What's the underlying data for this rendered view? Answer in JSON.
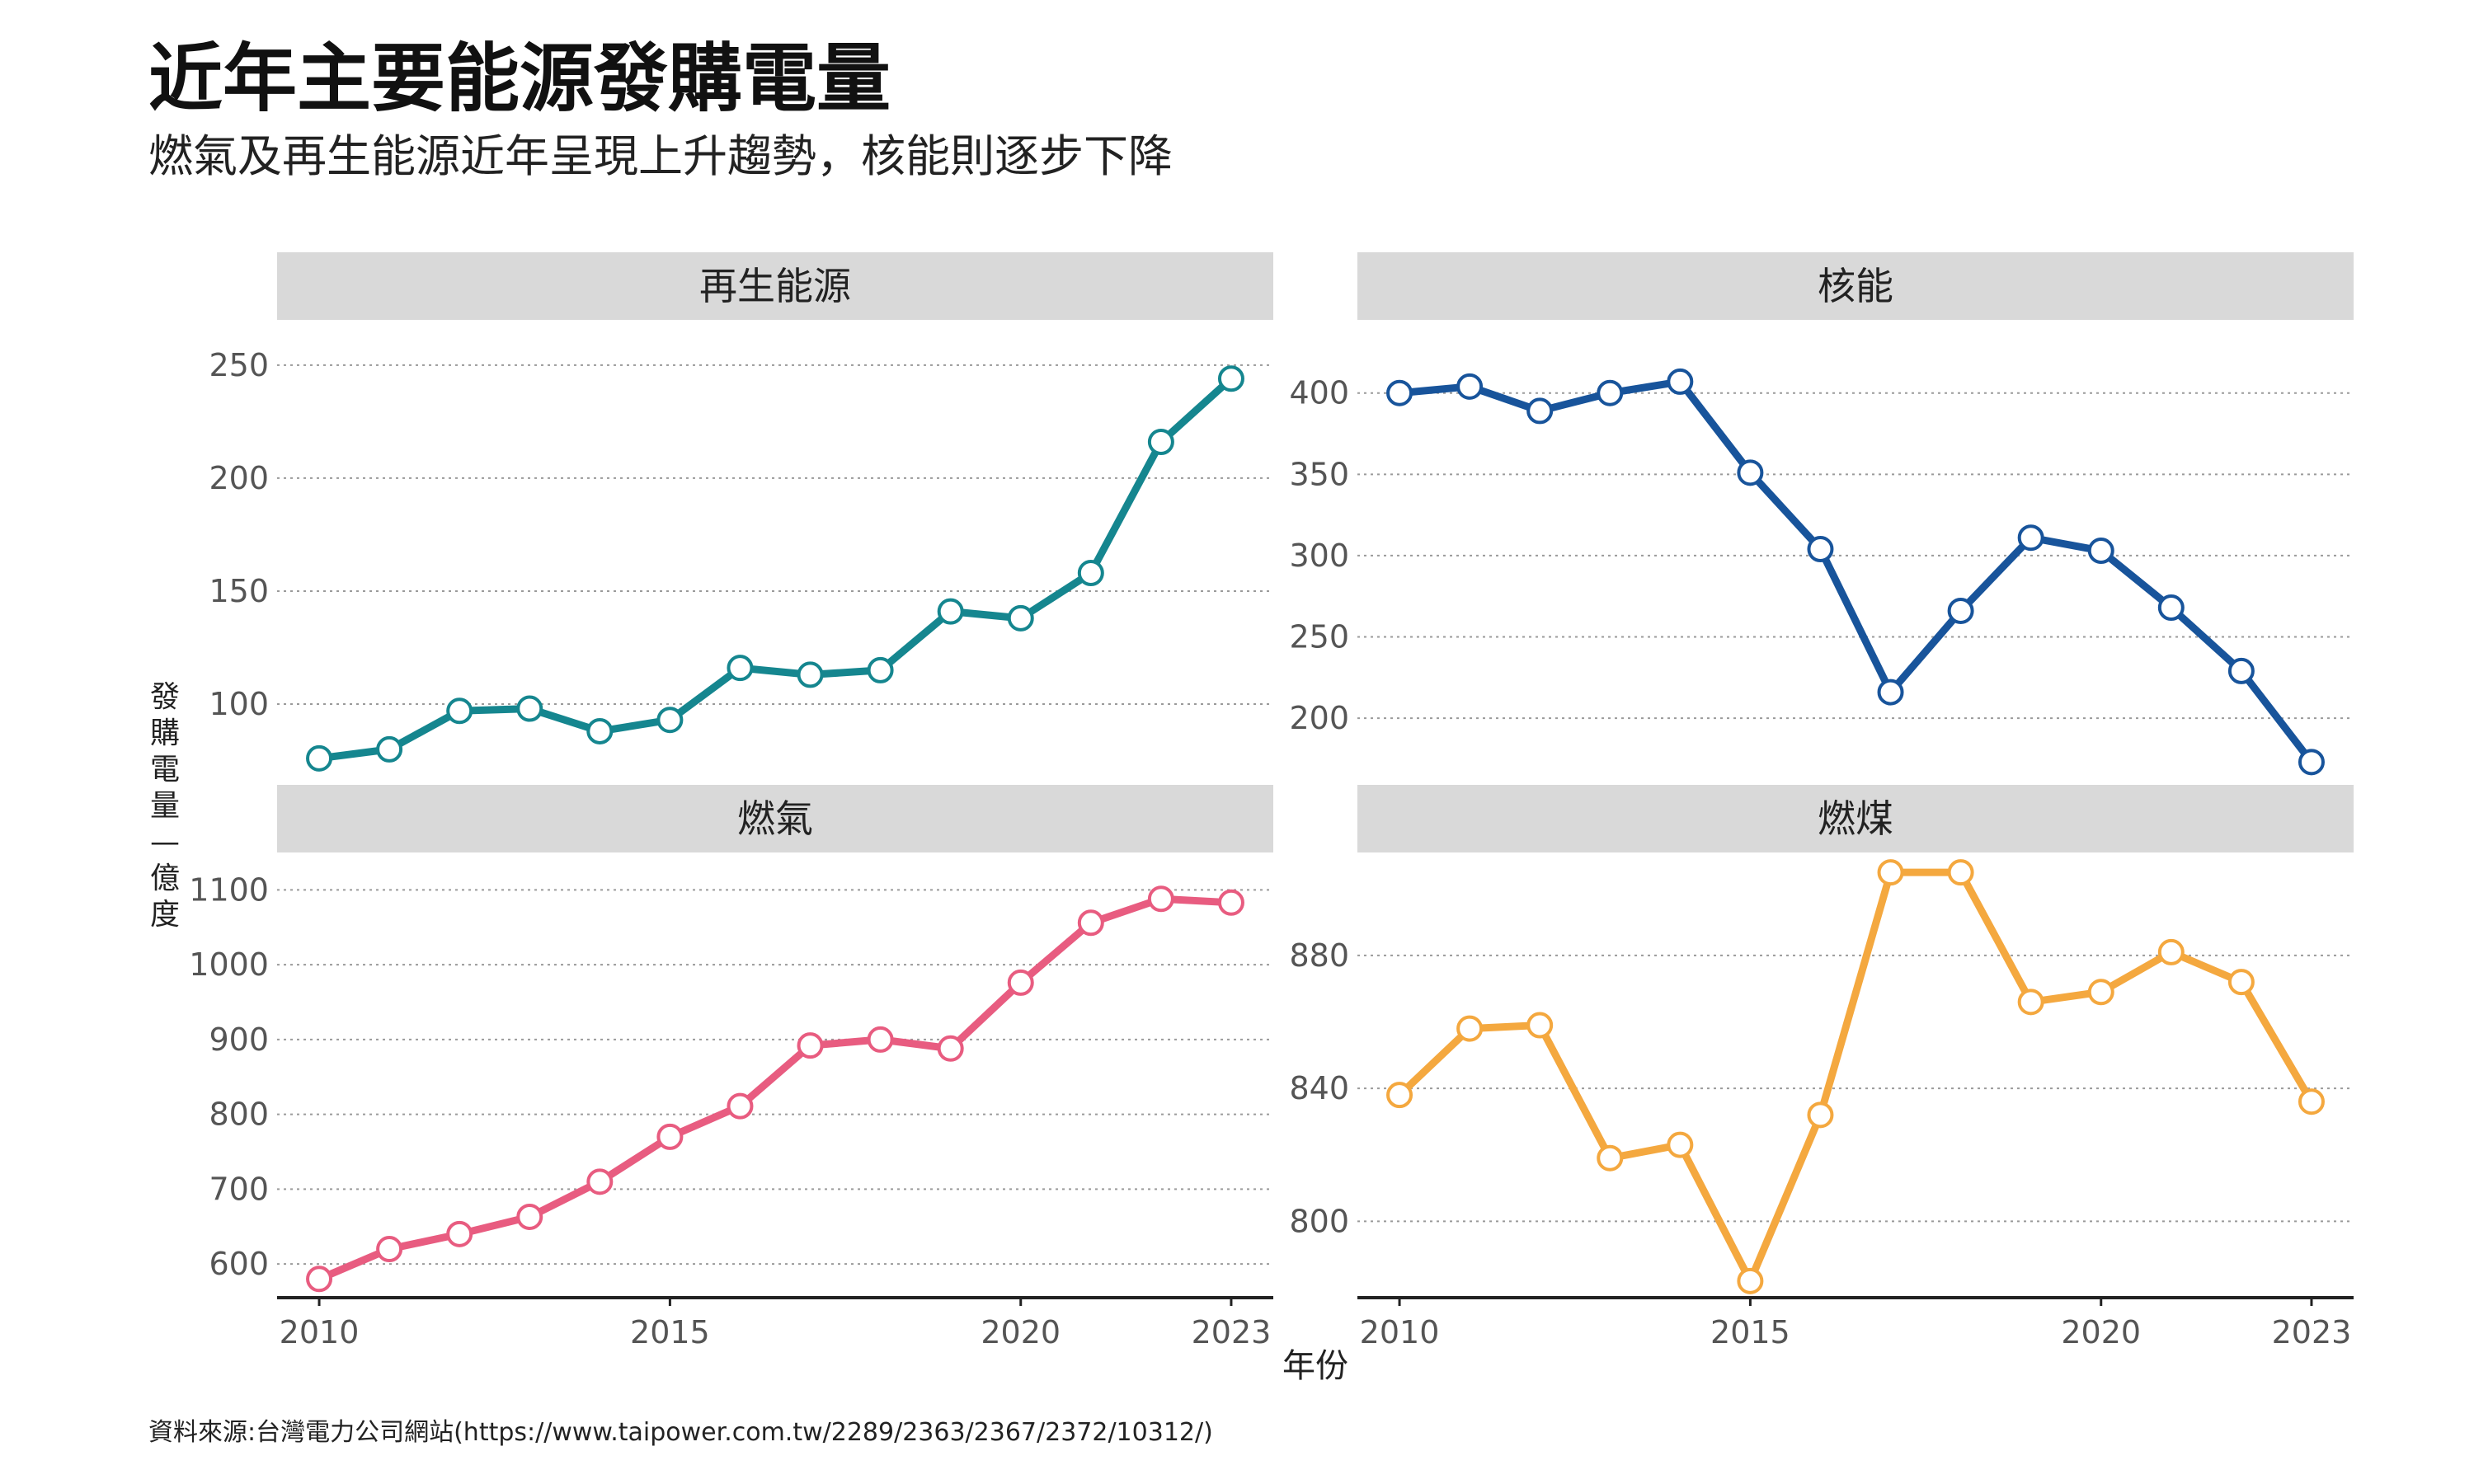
{
  "title": "近年主要能源發購電量",
  "subtitle": "燃氣及再生能源近年呈現上升趨勢，核能則逐步下降",
  "source": "資料來源:台灣電力公司網站(https://www.taipower.com.tw/2289/2363/2367/2372/10312/)",
  "chart_data": {
    "type": "line",
    "facet_layout": "2x2",
    "xlabel": "年份",
    "ylabel": "發購電量—億度",
    "x": [
      2010,
      2011,
      2012,
      2013,
      2014,
      2015,
      2016,
      2017,
      2018,
      2019,
      2020,
      2021,
      2022,
      2023
    ],
    "x_ticks": [
      2010,
      2015,
      2020,
      2023
    ],
    "grid": "horizontal dotted",
    "series": [
      {
        "name": "再生能源",
        "color": "#15868f",
        "values": [
          76,
          80,
          97,
          98,
          88,
          93,
          116,
          113,
          115,
          141,
          138,
          158,
          216,
          244
        ],
        "ylim": [
          65,
          270
        ],
        "y_ticks": [
          100,
          150,
          200,
          250
        ]
      },
      {
        "name": "核能",
        "color": "#18549b",
        "values": [
          400,
          404,
          389,
          400,
          407,
          351,
          304,
          216,
          266,
          311,
          303,
          268,
          229,
          173
        ],
        "ylim": [
          160,
          445
        ],
        "y_ticks": [
          200,
          250,
          300,
          350,
          400
        ]
      },
      {
        "name": "燃氣",
        "color": "#e85c80",
        "values": [
          580,
          620,
          640,
          663,
          710,
          770,
          811,
          892,
          900,
          888,
          976,
          1056,
          1088,
          1083
        ],
        "ylim": [
          555,
          1150
        ],
        "y_ticks": [
          600,
          700,
          800,
          900,
          1000,
          1100
        ]
      },
      {
        "name": "燃煤",
        "color": "#f4a83f",
        "values": [
          838,
          858,
          859,
          819,
          823,
          782,
          832,
          905,
          905,
          866,
          869,
          881,
          872,
          836
        ],
        "ylim": [
          777,
          911
        ],
        "y_ticks": [
          800,
          840,
          880
        ]
      }
    ]
  }
}
